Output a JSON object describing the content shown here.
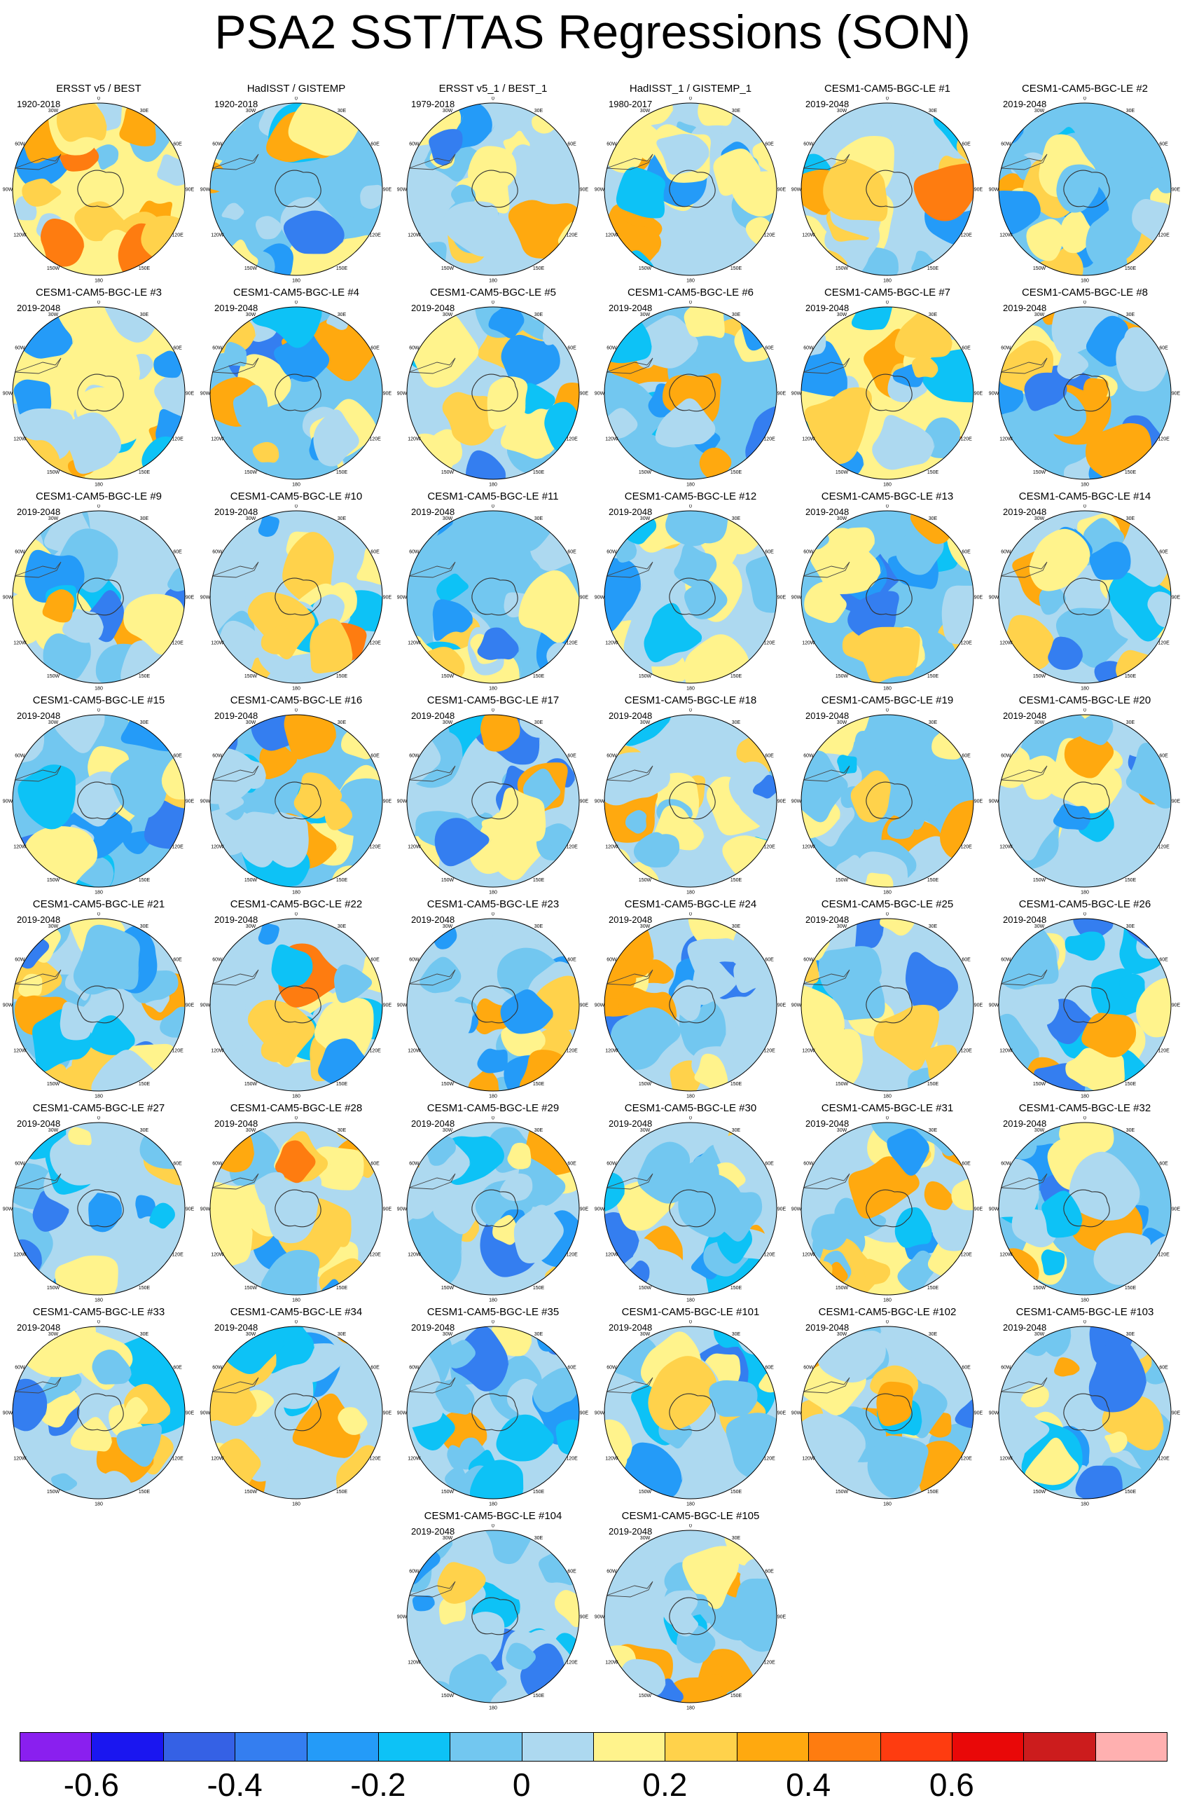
{
  "title": "PSA2 SST/TAS Regressions (SON)",
  "map_labels": {
    "lon_top": "0",
    "lon_30w": "30W",
    "lon_30e": "30E",
    "lon_60w": "60W",
    "lon_60e": "60E",
    "lon_90w": "90W",
    "lon_90e": "90E",
    "lon_120w": "120W",
    "lon_120e": "120E",
    "lon_150w": "150W",
    "lon_150e": "150E",
    "lon_bottom": "180"
  },
  "panels": [
    {
      "title": "ERSST v5 / BEST",
      "years": "1920-2018",
      "tone": 0.12
    },
    {
      "title": "HadISST / GISTEMP",
      "years": "1920-2018",
      "tone": -0.02
    },
    {
      "title": "ERSST v5_1 / BEST_1",
      "years": "1979-2018",
      "tone": 0.06
    },
    {
      "title": "HadISST_1 / GISTEMP_1",
      "years": "1980-2017",
      "tone": 0.02
    },
    {
      "title": "CESM1-CAM5-BGC-LE #1",
      "years": "2019-2048",
      "tone": 0.1
    },
    {
      "title": "CESM1-CAM5-BGC-LE #2",
      "years": "2019-2048",
      "tone": -0.06
    },
    {
      "title": "CESM1-CAM5-BGC-LE #3",
      "years": "2019-2048",
      "tone": 0.12
    },
    {
      "title": "CESM1-CAM5-BGC-LE #4",
      "years": "2019-2048",
      "tone": -0.04
    },
    {
      "title": "CESM1-CAM5-BGC-LE #5",
      "years": "2019-2048",
      "tone": 0.04
    },
    {
      "title": "CESM1-CAM5-BGC-LE #6",
      "years": "2019-2048",
      "tone": 0.0
    },
    {
      "title": "CESM1-CAM5-BGC-LE #7",
      "years": "2019-2048",
      "tone": 0.14
    },
    {
      "title": "CESM1-CAM5-BGC-LE #8",
      "years": "2019-2048",
      "tone": -0.04
    },
    {
      "title": "CESM1-CAM5-BGC-LE #9",
      "years": "2019-2048",
      "tone": 0.02
    },
    {
      "title": "CESM1-CAM5-BGC-LE #10",
      "years": "2019-2048",
      "tone": 0.1
    },
    {
      "title": "CESM1-CAM5-BGC-LE #11",
      "years": "2019-2048",
      "tone": -0.06
    },
    {
      "title": "CESM1-CAM5-BGC-LE #12",
      "years": "2019-2048",
      "tone": 0.02
    },
    {
      "title": "CESM1-CAM5-BGC-LE #13",
      "years": "2019-2048",
      "tone": -0.02
    },
    {
      "title": "CESM1-CAM5-BGC-LE #14",
      "years": "2019-2048",
      "tone": 0.04
    },
    {
      "title": "CESM1-CAM5-BGC-LE #15",
      "years": "2019-2048",
      "tone": -0.04
    },
    {
      "title": "CESM1-CAM5-BGC-LE #16",
      "years": "2019-2048",
      "tone": -0.06
    },
    {
      "title": "CESM1-CAM5-BGC-LE #17",
      "years": "2019-2048",
      "tone": 0.04
    },
    {
      "title": "CESM1-CAM5-BGC-LE #18",
      "years": "2019-2048",
      "tone": 0.02
    },
    {
      "title": "CESM1-CAM5-BGC-LE #19",
      "years": "2019-2048",
      "tone": -0.02
    },
    {
      "title": "CESM1-CAM5-BGC-LE #20",
      "years": "2019-2048",
      "tone": 0.04
    },
    {
      "title": "CESM1-CAM5-BGC-LE #21",
      "years": "2019-2048",
      "tone": 0.04
    },
    {
      "title": "CESM1-CAM5-BGC-LE #22",
      "years": "2019-2048",
      "tone": 0.1
    },
    {
      "title": "CESM1-CAM5-BGC-LE #23",
      "years": "2019-2048",
      "tone": 0.06
    },
    {
      "title": "CESM1-CAM5-BGC-LE #24",
      "years": "2019-2048",
      "tone": 0.02
    },
    {
      "title": "CESM1-CAM5-BGC-LE #25",
      "years": "2019-2048",
      "tone": 0.04
    },
    {
      "title": "CESM1-CAM5-BGC-LE #26",
      "years": "2019-2048",
      "tone": 0.06
    },
    {
      "title": "CESM1-CAM5-BGC-LE #27",
      "years": "2019-2048",
      "tone": 0.04
    },
    {
      "title": "CESM1-CAM5-BGC-LE #28",
      "years": "2019-2048",
      "tone": 0.1
    },
    {
      "title": "CESM1-CAM5-BGC-LE #29",
      "years": "2019-2048",
      "tone": 0.08
    },
    {
      "title": "CESM1-CAM5-BGC-LE #30",
      "years": "2019-2048",
      "tone": 0.08
    },
    {
      "title": "CESM1-CAM5-BGC-LE #31",
      "years": "2019-2048",
      "tone": 0.04
    },
    {
      "title": "CESM1-CAM5-BGC-LE #32",
      "years": "2019-2048",
      "tone": 0.0
    },
    {
      "title": "CESM1-CAM5-BGC-LE #33",
      "years": "2019-2048",
      "tone": 0.04
    },
    {
      "title": "CESM1-CAM5-BGC-LE #34",
      "years": "2019-2048",
      "tone": 0.1
    },
    {
      "title": "CESM1-CAM5-BGC-LE #35",
      "years": "2019-2048",
      "tone": 0.06
    },
    {
      "title": "CESM1-CAM5-BGC-LE #101",
      "years": "2019-2048",
      "tone": 0.02
    },
    {
      "title": "CESM1-CAM5-BGC-LE #102",
      "years": "2019-2048",
      "tone": 0.04
    },
    {
      "title": "CESM1-CAM5-BGC-LE #103",
      "years": "2019-2048",
      "tone": 0.02
    },
    {
      "title": "CESM1-CAM5-BGC-LE #104",
      "years": "2019-2048",
      "tone": 0.06
    },
    {
      "title": "CESM1-CAM5-BGC-LE #105",
      "years": "2019-2048",
      "tone": 0.04
    }
  ],
  "colorbar": {
    "colors": [
      "#8a1fef",
      "#1a16f0",
      "#3561e5",
      "#347ef0",
      "#249bf8",
      "#0dc2f6",
      "#72c7f0",
      "#add9f0",
      "#fff38c",
      "#ffd24b",
      "#ffa90f",
      "#fe7c10",
      "#fe3c10",
      "#e90808",
      "#cc1c1d",
      "#ffb0b0"
    ],
    "tick_values": [
      -0.6,
      -0.4,
      -0.2,
      0,
      0.2,
      0.4,
      0.6
    ],
    "tick_labels": [
      "-0.6",
      "-0.4",
      "-0.2",
      "0",
      "0.2",
      "0.4",
      "0.6"
    ]
  }
}
